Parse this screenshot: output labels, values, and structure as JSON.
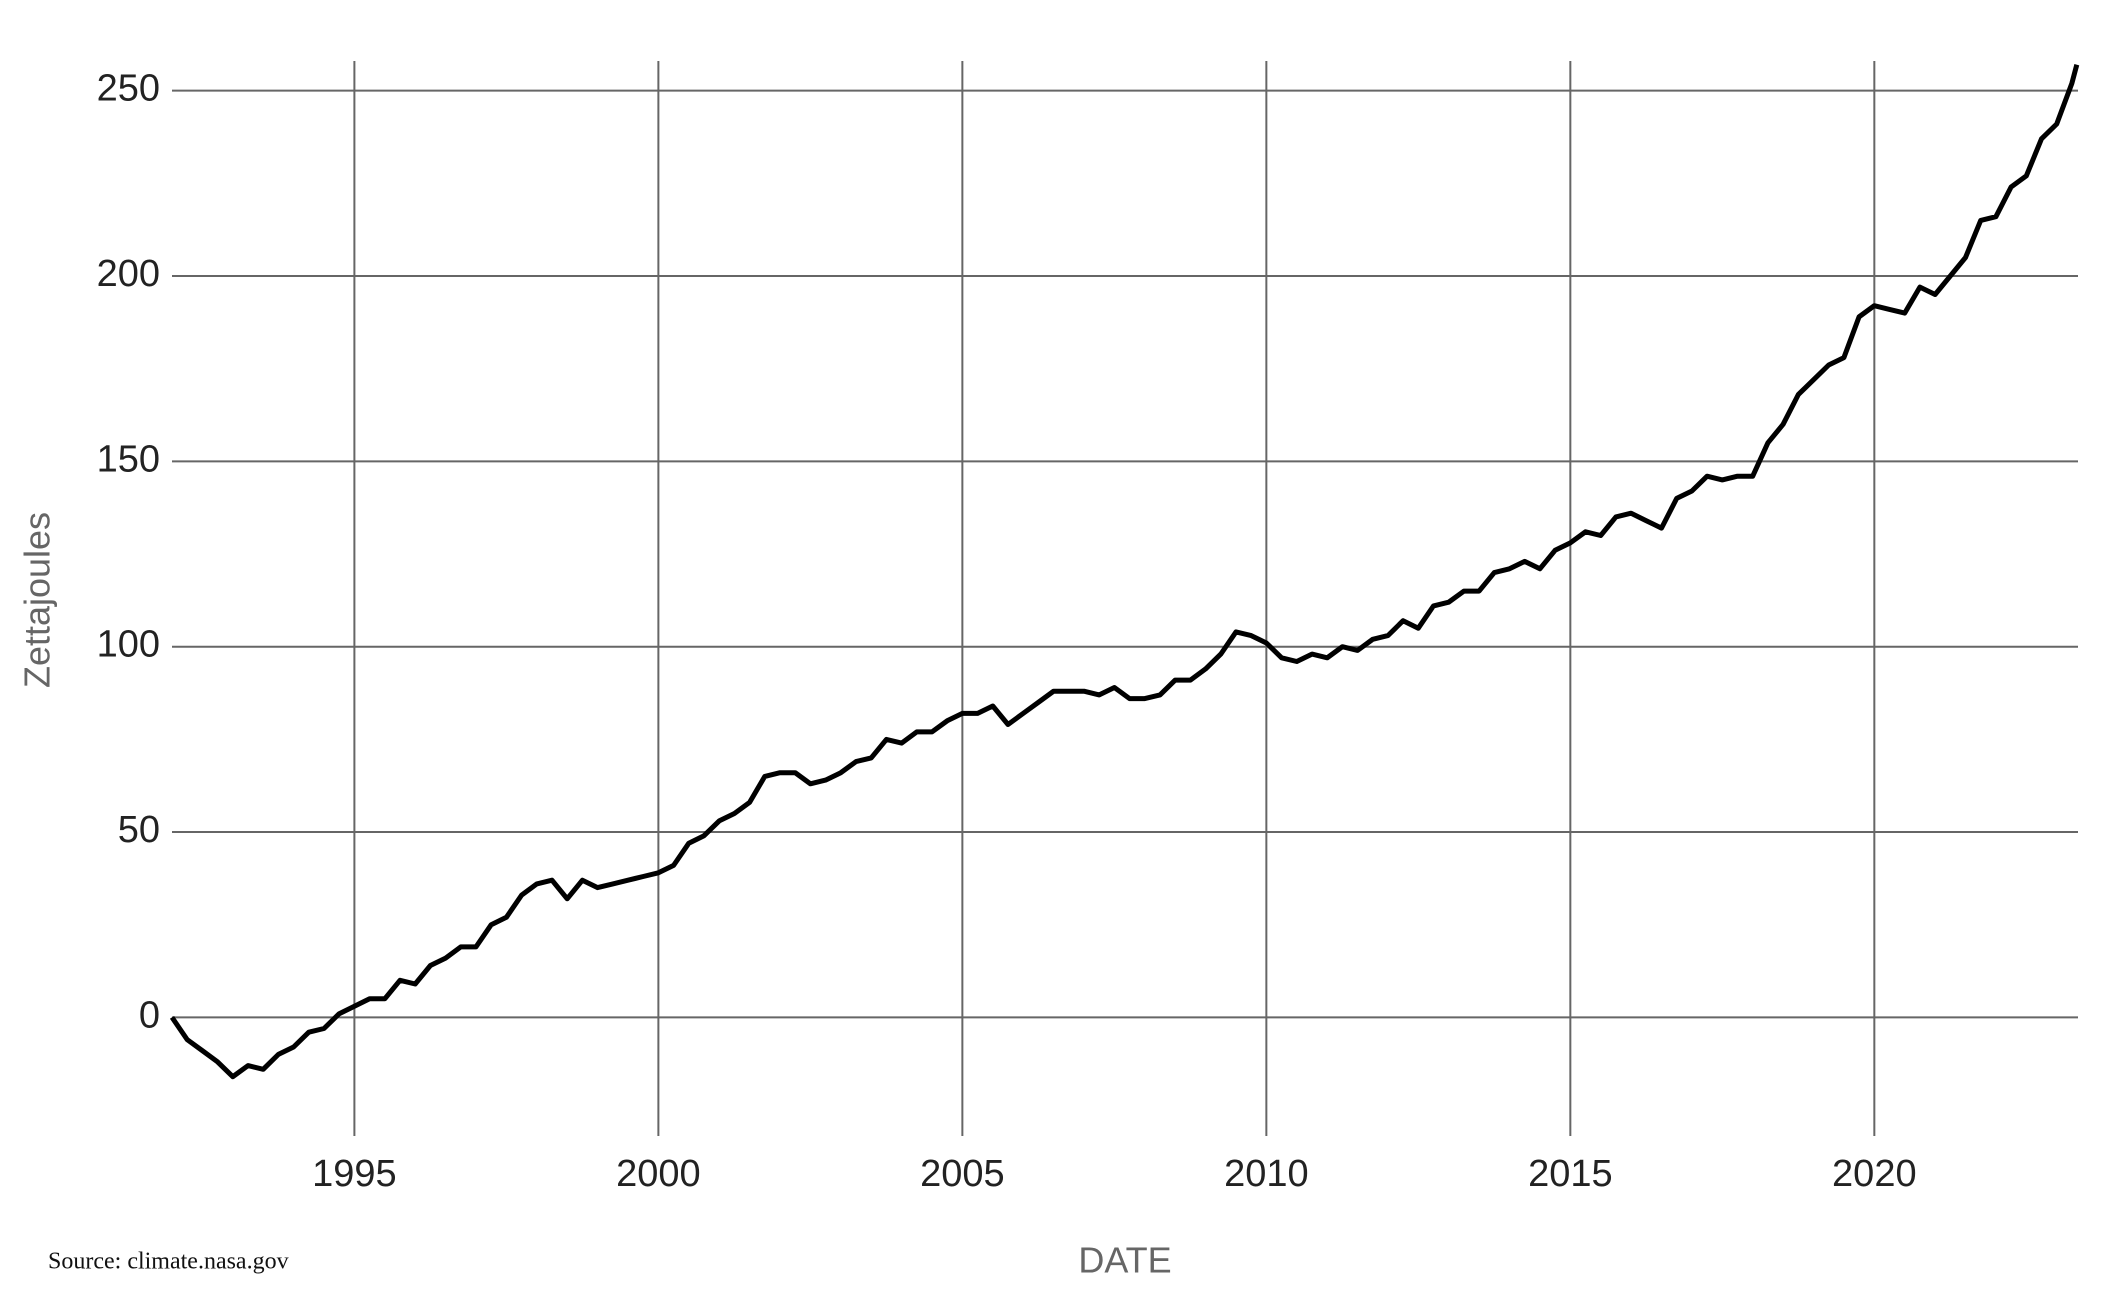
{
  "chart_data": {
    "type": "line",
    "x_label": "DATE",
    "y_label": "Zettajoules",
    "source": "Source: climate.nasa.gov",
    "x": [
      1992.0,
      1992.25,
      1992.5,
      1992.75,
      1993.0,
      1993.25,
      1993.5,
      1993.75,
      1994.0,
      1994.25,
      1994.5,
      1994.75,
      1995.0,
      1995.25,
      1995.5,
      1995.75,
      1996.0,
      1996.25,
      1996.5,
      1996.75,
      1997.0,
      1997.25,
      1997.5,
      1997.75,
      1998.0,
      1998.25,
      1998.5,
      1998.75,
      1999.0,
      1999.25,
      1999.5,
      1999.75,
      2000.0,
      2000.25,
      2000.5,
      2000.75,
      2001.0,
      2001.25,
      2001.5,
      2001.75,
      2002.0,
      2002.25,
      2002.5,
      2002.75,
      2003.0,
      2003.25,
      2003.5,
      2003.75,
      2004.0,
      2004.25,
      2004.5,
      2004.75,
      2005.0,
      2005.25,
      2005.5,
      2005.75,
      2006.0,
      2006.25,
      2006.5,
      2006.75,
      2007.0,
      2007.25,
      2007.5,
      2007.75,
      2008.0,
      2008.25,
      2008.5,
      2008.75,
      2009.0,
      2009.25,
      2009.5,
      2009.75,
      2010.0,
      2010.25,
      2010.5,
      2010.75,
      2011.0,
      2011.25,
      2011.5,
      2011.75,
      2012.0,
      2012.25,
      2012.5,
      2012.75,
      2013.0,
      2013.25,
      2013.5,
      2013.75,
      2014.0,
      2014.25,
      2014.5,
      2014.75,
      2015.0,
      2015.25,
      2015.5,
      2015.75,
      2016.0,
      2016.25,
      2016.5,
      2016.75,
      2017.0,
      2017.25,
      2017.5,
      2017.75,
      2018.0,
      2018.25,
      2018.5,
      2018.75,
      2019.0,
      2019.25,
      2019.5,
      2019.75,
      2020.0,
      2020.25,
      2020.5,
      2020.75,
      2021.0,
      2021.25,
      2021.5,
      2021.75,
      2022.0,
      2022.25,
      2022.5,
      2022.75,
      2023.0,
      2023.25,
      2023.33
    ],
    "series": [
      {
        "name": "Zettajoules",
        "color": "#000000",
        "values": [
          0,
          -6,
          -9,
          -12,
          -16,
          -13,
          -14,
          -10,
          -8,
          -4,
          -3,
          1,
          3,
          5,
          5,
          10,
          9,
          14,
          16,
          19,
          19,
          25,
          27,
          33,
          36,
          37,
          32,
          37,
          35,
          36,
          37,
          38,
          39,
          41,
          47,
          49,
          53,
          55,
          58,
          65,
          66,
          66,
          63,
          64,
          66,
          69,
          70,
          75,
          74,
          77,
          77,
          80,
          82,
          82,
          84,
          79,
          82,
          85,
          88,
          88,
          88,
          87,
          89,
          86,
          86,
          87,
          91,
          91,
          94,
          98,
          104,
          103,
          101,
          97,
          96,
          98,
          97,
          100,
          99,
          102,
          103,
          107,
          105,
          111,
          112,
          115,
          115,
          120,
          121,
          123,
          121,
          126,
          128,
          131,
          130,
          135,
          136,
          134,
          132,
          140,
          142,
          146,
          145,
          146,
          146,
          155,
          160,
          168,
          172,
          176,
          178,
          189,
          192,
          191,
          190,
          197,
          195,
          200,
          205,
          215,
          216,
          224,
          227,
          237,
          241,
          252,
          257
        ]
      }
    ],
    "xlim": [
      1992,
      2023.35
    ],
    "ylim": [
      -32,
      258
    ],
    "xticks": [
      1995,
      2000,
      2005,
      2010,
      2015,
      2020
    ],
    "yticks": [
      0,
      50,
      100,
      150,
      200,
      250
    ],
    "grid": true
  }
}
